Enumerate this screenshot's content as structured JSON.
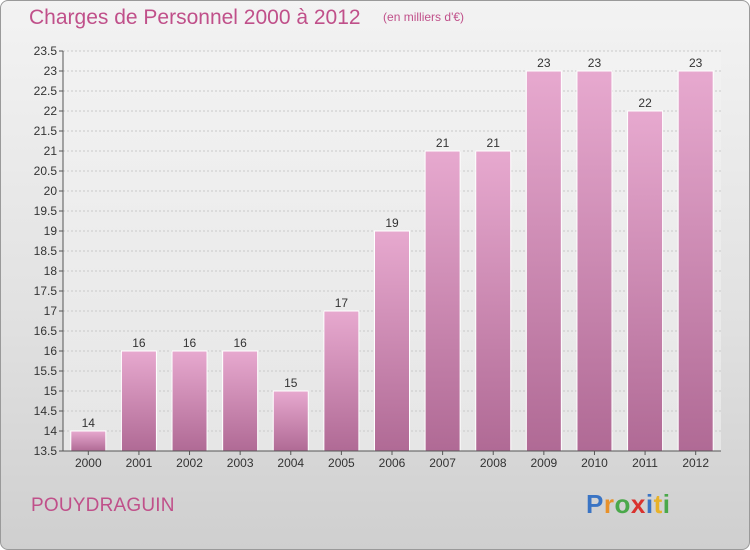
{
  "header": {
    "title": "Charges de Personnel 2000 à 2012",
    "subtitle": "(en milliers d'€)"
  },
  "footer": {
    "commune": "POUYDRAGUIN",
    "logo": "Proxiti"
  },
  "colors": {
    "accent": "#c0508a",
    "bar_top": "#e7a9cf",
    "bar_bottom": "#b06a95"
  },
  "chart_data": {
    "type": "bar",
    "title": "Charges de Personnel 2000 à 2012",
    "subtitle": "(en milliers d'€)",
    "categories": [
      "2000",
      "2001",
      "2002",
      "2003",
      "2004",
      "2005",
      "2006",
      "2007",
      "2008",
      "2009",
      "2010",
      "2011",
      "2012"
    ],
    "values": [
      14,
      16,
      16,
      16,
      15,
      17,
      19,
      21,
      21,
      23,
      23,
      22,
      23
    ],
    "ylim": [
      13.5,
      23.5
    ],
    "yticks": [
      "13.5",
      "14",
      "14.5",
      "15",
      "15.5",
      "16",
      "16.5",
      "17",
      "17.5",
      "18",
      "18.5",
      "19",
      "19.5",
      "20",
      "20.5",
      "21",
      "21.5",
      "22",
      "22.5",
      "23",
      "23.5"
    ],
    "grid": true
  }
}
